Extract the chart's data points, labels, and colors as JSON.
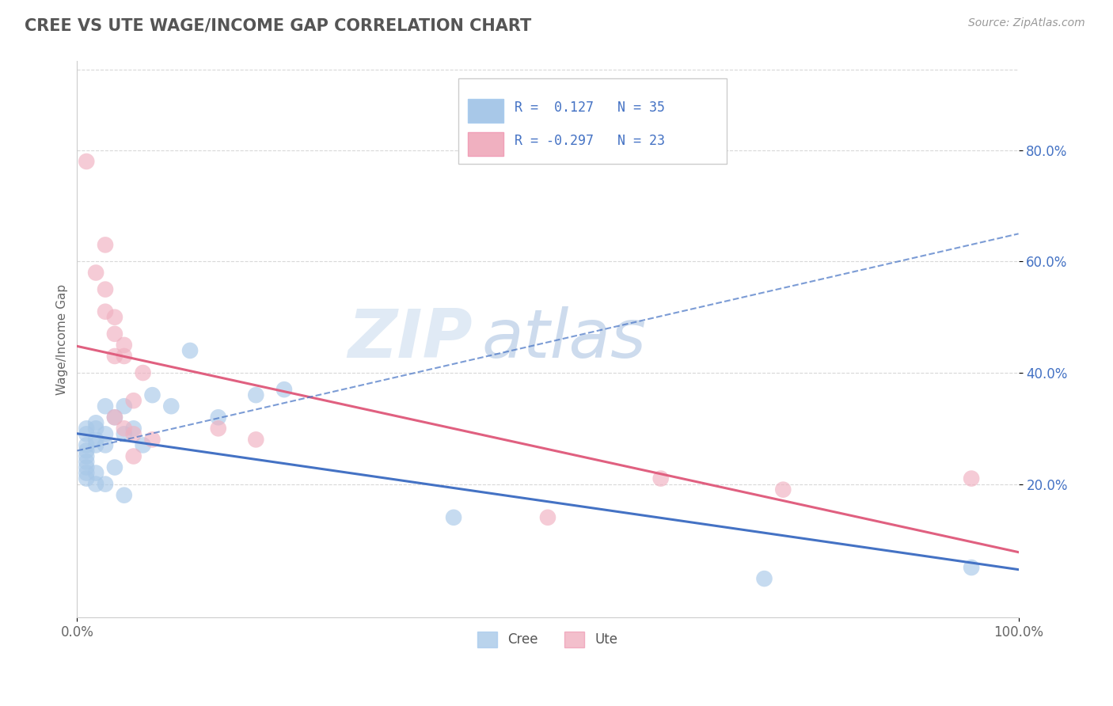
{
  "title": "CREE VS UTE WAGE/INCOME GAP CORRELATION CHART",
  "source": "Source: ZipAtlas.com",
  "ylabel": "Wage/Income Gap",
  "background_color": "#ffffff",
  "plot_bg_color": "#ffffff",
  "watermark_zip": "ZIP",
  "watermark_atlas": "atlas",
  "legend_r_cree": "R =  0.127",
  "legend_n_cree": "N = 35",
  "legend_r_ute": "R = -0.297",
  "legend_n_ute": "N = 23",
  "xlim": [
    0.0,
    1.0
  ],
  "ylim": [
    -0.04,
    0.96
  ],
  "ytick_labels": [
    "20.0%",
    "40.0%",
    "60.0%",
    "80.0%"
  ],
  "ytick_vals": [
    0.2,
    0.4,
    0.6,
    0.8
  ],
  "grid_color": "#d8d8d8",
  "cree_color": "#a8c8e8",
  "ute_color": "#f0b0c0",
  "cree_line_color": "#4472c4",
  "ute_line_color": "#e06080",
  "cree_scatter": [
    [
      0.01,
      0.3
    ],
    [
      0.01,
      0.29
    ],
    [
      0.01,
      0.27
    ],
    [
      0.01,
      0.26
    ],
    [
      0.01,
      0.25
    ],
    [
      0.01,
      0.24
    ],
    [
      0.01,
      0.23
    ],
    [
      0.01,
      0.22
    ],
    [
      0.01,
      0.21
    ],
    [
      0.02,
      0.31
    ],
    [
      0.02,
      0.3
    ],
    [
      0.02,
      0.28
    ],
    [
      0.02,
      0.27
    ],
    [
      0.02,
      0.22
    ],
    [
      0.02,
      0.2
    ],
    [
      0.03,
      0.34
    ],
    [
      0.03,
      0.29
    ],
    [
      0.03,
      0.27
    ],
    [
      0.03,
      0.2
    ],
    [
      0.04,
      0.32
    ],
    [
      0.04,
      0.23
    ],
    [
      0.05,
      0.34
    ],
    [
      0.05,
      0.29
    ],
    [
      0.05,
      0.18
    ],
    [
      0.06,
      0.3
    ],
    [
      0.07,
      0.27
    ],
    [
      0.08,
      0.36
    ],
    [
      0.1,
      0.34
    ],
    [
      0.12,
      0.44
    ],
    [
      0.15,
      0.32
    ],
    [
      0.19,
      0.36
    ],
    [
      0.22,
      0.37
    ],
    [
      0.4,
      0.14
    ],
    [
      0.73,
      0.03
    ],
    [
      0.95,
      0.05
    ]
  ],
  "ute_scatter": [
    [
      0.01,
      0.78
    ],
    [
      0.02,
      0.58
    ],
    [
      0.03,
      0.55
    ],
    [
      0.03,
      0.51
    ],
    [
      0.03,
      0.63
    ],
    [
      0.04,
      0.47
    ],
    [
      0.04,
      0.5
    ],
    [
      0.04,
      0.43
    ],
    [
      0.04,
      0.32
    ],
    [
      0.05,
      0.43
    ],
    [
      0.05,
      0.3
    ],
    [
      0.05,
      0.45
    ],
    [
      0.06,
      0.29
    ],
    [
      0.06,
      0.35
    ],
    [
      0.06,
      0.25
    ],
    [
      0.07,
      0.4
    ],
    [
      0.08,
      0.28
    ],
    [
      0.15,
      0.3
    ],
    [
      0.19,
      0.28
    ],
    [
      0.5,
      0.14
    ],
    [
      0.62,
      0.21
    ],
    [
      0.75,
      0.19
    ],
    [
      0.95,
      0.21
    ]
  ]
}
